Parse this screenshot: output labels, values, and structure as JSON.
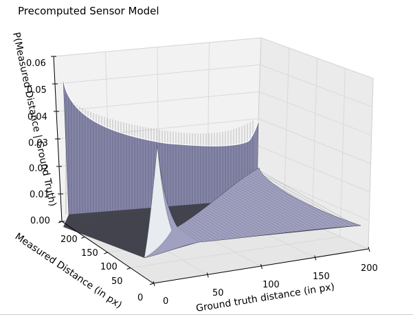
{
  "chart_data": {
    "type": "surface",
    "title": "Precomputed Sensor Model",
    "xlabel": "Ground truth distance (in px)",
    "ylabel": "Measured Distance (in px)",
    "zlabel": "P(Measured Distance | Ground Truth)",
    "xlim": [
      0,
      200
    ],
    "ylim": [
      0,
      200
    ],
    "zlim": [
      0,
      0.06
    ],
    "x_ticks": [
      "0",
      "50",
      "100",
      "150",
      "200"
    ],
    "y_ticks": [
      "0",
      "50",
      "100",
      "150",
      "200"
    ],
    "z_ticks": [
      "0.00",
      "0.01",
      "0.02",
      "0.03",
      "0.04",
      "0.05",
      "0.06"
    ],
    "grid": true,
    "colormap": "bone",
    "colors": {
      "low": "#2a2a33",
      "mid": "#8e8eb2",
      "high": "#ffffff"
    },
    "surface_estimates": [
      {
        "feature": "short-reading wall at ground truth 0",
        "measured": 200,
        "ground_truth": 0,
        "value": 0.052
      },
      {
        "feature": "short-reading wall at ground truth 0",
        "measured": 100,
        "ground_truth": 0,
        "value": 0.027
      },
      {
        "feature": "short-reading wall at ground truth 0",
        "measured": 0,
        "ground_truth": 0,
        "value": 0.015
      },
      {
        "feature": "max-range ridge",
        "measured": 0,
        "ground_truth": 200,
        "value": 0.03
      },
      {
        "feature": "hit peak on diagonal",
        "measured": 40,
        "ground_truth": 40,
        "value": 0.027
      },
      {
        "feature": "hit ridge on diagonal",
        "measured": 100,
        "ground_truth": 100,
        "value": 0.006
      },
      {
        "feature": "hit ridge on diagonal",
        "measured": 200,
        "ground_truth": 200,
        "value": 0.003
      }
    ]
  }
}
